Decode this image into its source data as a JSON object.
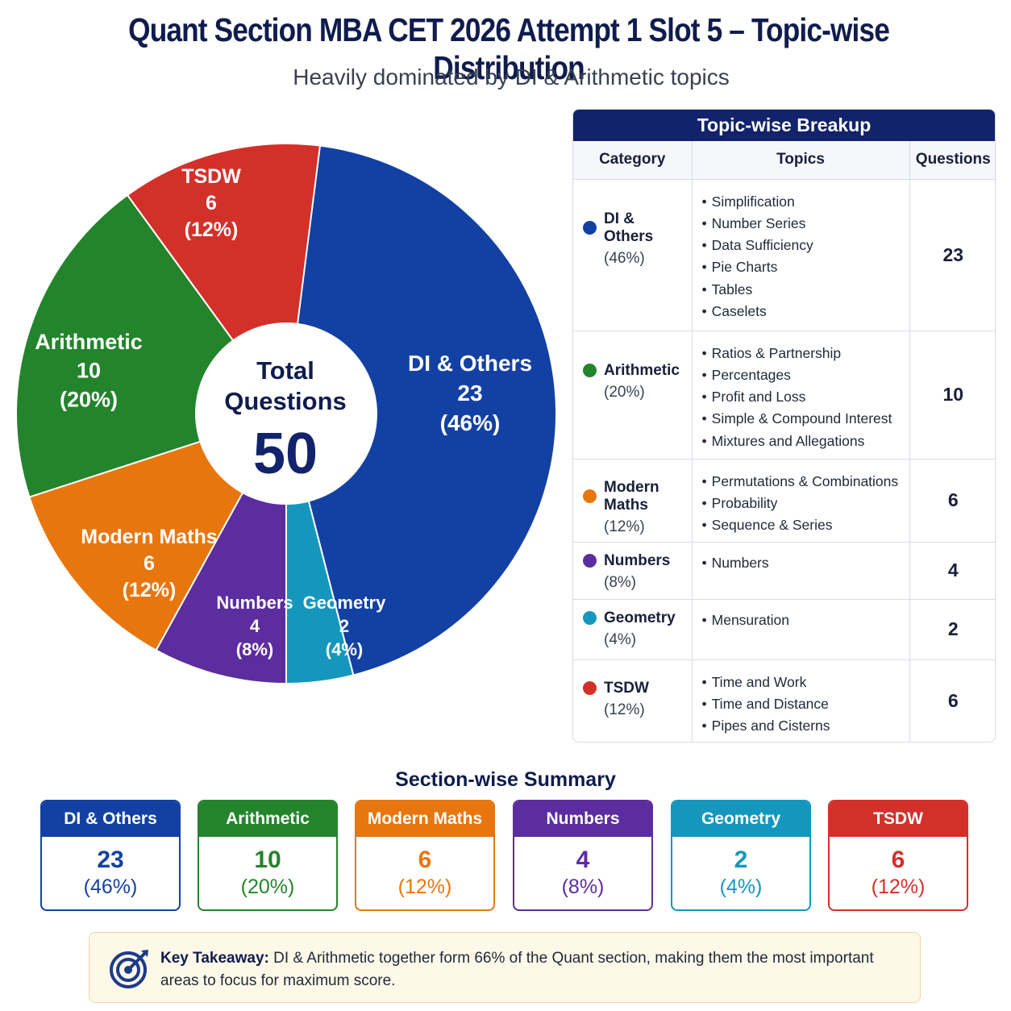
{
  "title": "Quant Section MBA CET 2026 Attempt 1 Slot 5 – Topic-wise Distribution",
  "subtitle": "Heavily dominated by DI & Arithmetic topics",
  "chart_data": {
    "type": "pie",
    "center": {
      "line1": "Total",
      "line2": "Questions",
      "total": "50"
    },
    "total": 50,
    "slices": [
      {
        "label": "DI & Others",
        "value": 23,
        "value_text": "23",
        "percent_text": "(46%)",
        "color": "#1341a3"
      },
      {
        "label": "Geometry",
        "value": 2,
        "value_text": "2",
        "percent_text": "(4%)",
        "color": "#1597bd"
      },
      {
        "label": "Numbers",
        "value": 4,
        "value_text": "4",
        "percent_text": "(8%)",
        "color": "#5c2d9e"
      },
      {
        "label": "Modern Maths",
        "value": 6,
        "value_text": "6",
        "percent_text": "(12%)",
        "color": "#e8760e"
      },
      {
        "label": "Arithmetic",
        "value": 10,
        "value_text": "10",
        "percent_text": "(20%)",
        "color": "#24842c"
      },
      {
        "label": "TSDW",
        "value": 6,
        "value_text": "6",
        "percent_text": "(12%)",
        "color": "#d4302a"
      }
    ]
  },
  "breakup": {
    "header": "Topic-wise Breakup",
    "columns": [
      "Category",
      "Topics",
      "Questions"
    ],
    "rows": [
      {
        "category": "DI & Others",
        "percent": "(46%)",
        "color": "#1341a3",
        "topics": [
          "Simplification",
          "Number Series",
          "Data Sufficiency",
          "Pie Charts",
          "Tables",
          "Caselets"
        ],
        "questions": "23"
      },
      {
        "category": "Arithmetic",
        "percent": "(20%)",
        "color": "#24842c",
        "topics": [
          "Ratios & Partnership",
          "Percentages",
          "Profit and Loss",
          "Simple & Compound Interest",
          "Mixtures and Allegations"
        ],
        "questions": "10"
      },
      {
        "category": "Modern Maths",
        "percent": "(12%)",
        "color": "#e8760e",
        "topics": [
          "Permutations & Combinations",
          "Probability",
          "Sequence & Series"
        ],
        "questions": "6"
      },
      {
        "category": "Numbers",
        "percent": "(8%)",
        "color": "#5c2d9e",
        "topics": [
          "Numbers"
        ],
        "questions": "4"
      },
      {
        "category": "Geometry",
        "percent": "(4%)",
        "color": "#1597bd",
        "topics": [
          "Mensuration"
        ],
        "questions": "2"
      },
      {
        "category": "TSDW",
        "percent": "(12%)",
        "color": "#d4302a",
        "topics": [
          "Time and Work",
          "Time and Distance",
          "Pipes and Cisterns"
        ],
        "questions": "6"
      }
    ]
  },
  "summary": {
    "title": "Section-wise Summary",
    "cards": [
      {
        "name": "DI & Others",
        "count": "23",
        "percent": "(46%)",
        "color": "#1341a3",
        "text_color": "#1341a3"
      },
      {
        "name": "Arithmetic",
        "count": "10",
        "percent": "(20%)",
        "color": "#24842c",
        "text_color": "#24842c"
      },
      {
        "name": "Modern Maths",
        "count": "6",
        "percent": "(12%)",
        "color": "#e8760e",
        "text_color": "#e8760e"
      },
      {
        "name": "Numbers",
        "count": "4",
        "percent": "(8%)",
        "color": "#5c2d9e",
        "text_color": "#5c2d9e"
      },
      {
        "name": "Geometry",
        "count": "2",
        "percent": "(4%)",
        "color": "#1597bd",
        "text_color": "#1597bd"
      },
      {
        "name": "TSDW",
        "count": "6",
        "percent": "(12%)",
        "color": "#d4302a",
        "text_color": "#d4302a"
      }
    ]
  },
  "takeaway": {
    "icon": "target-icon",
    "label": "Key Takeaway:",
    "text": "DI & Arithmetic together form 66% of the Quant section, making them the most important areas to focus for maximum score."
  }
}
